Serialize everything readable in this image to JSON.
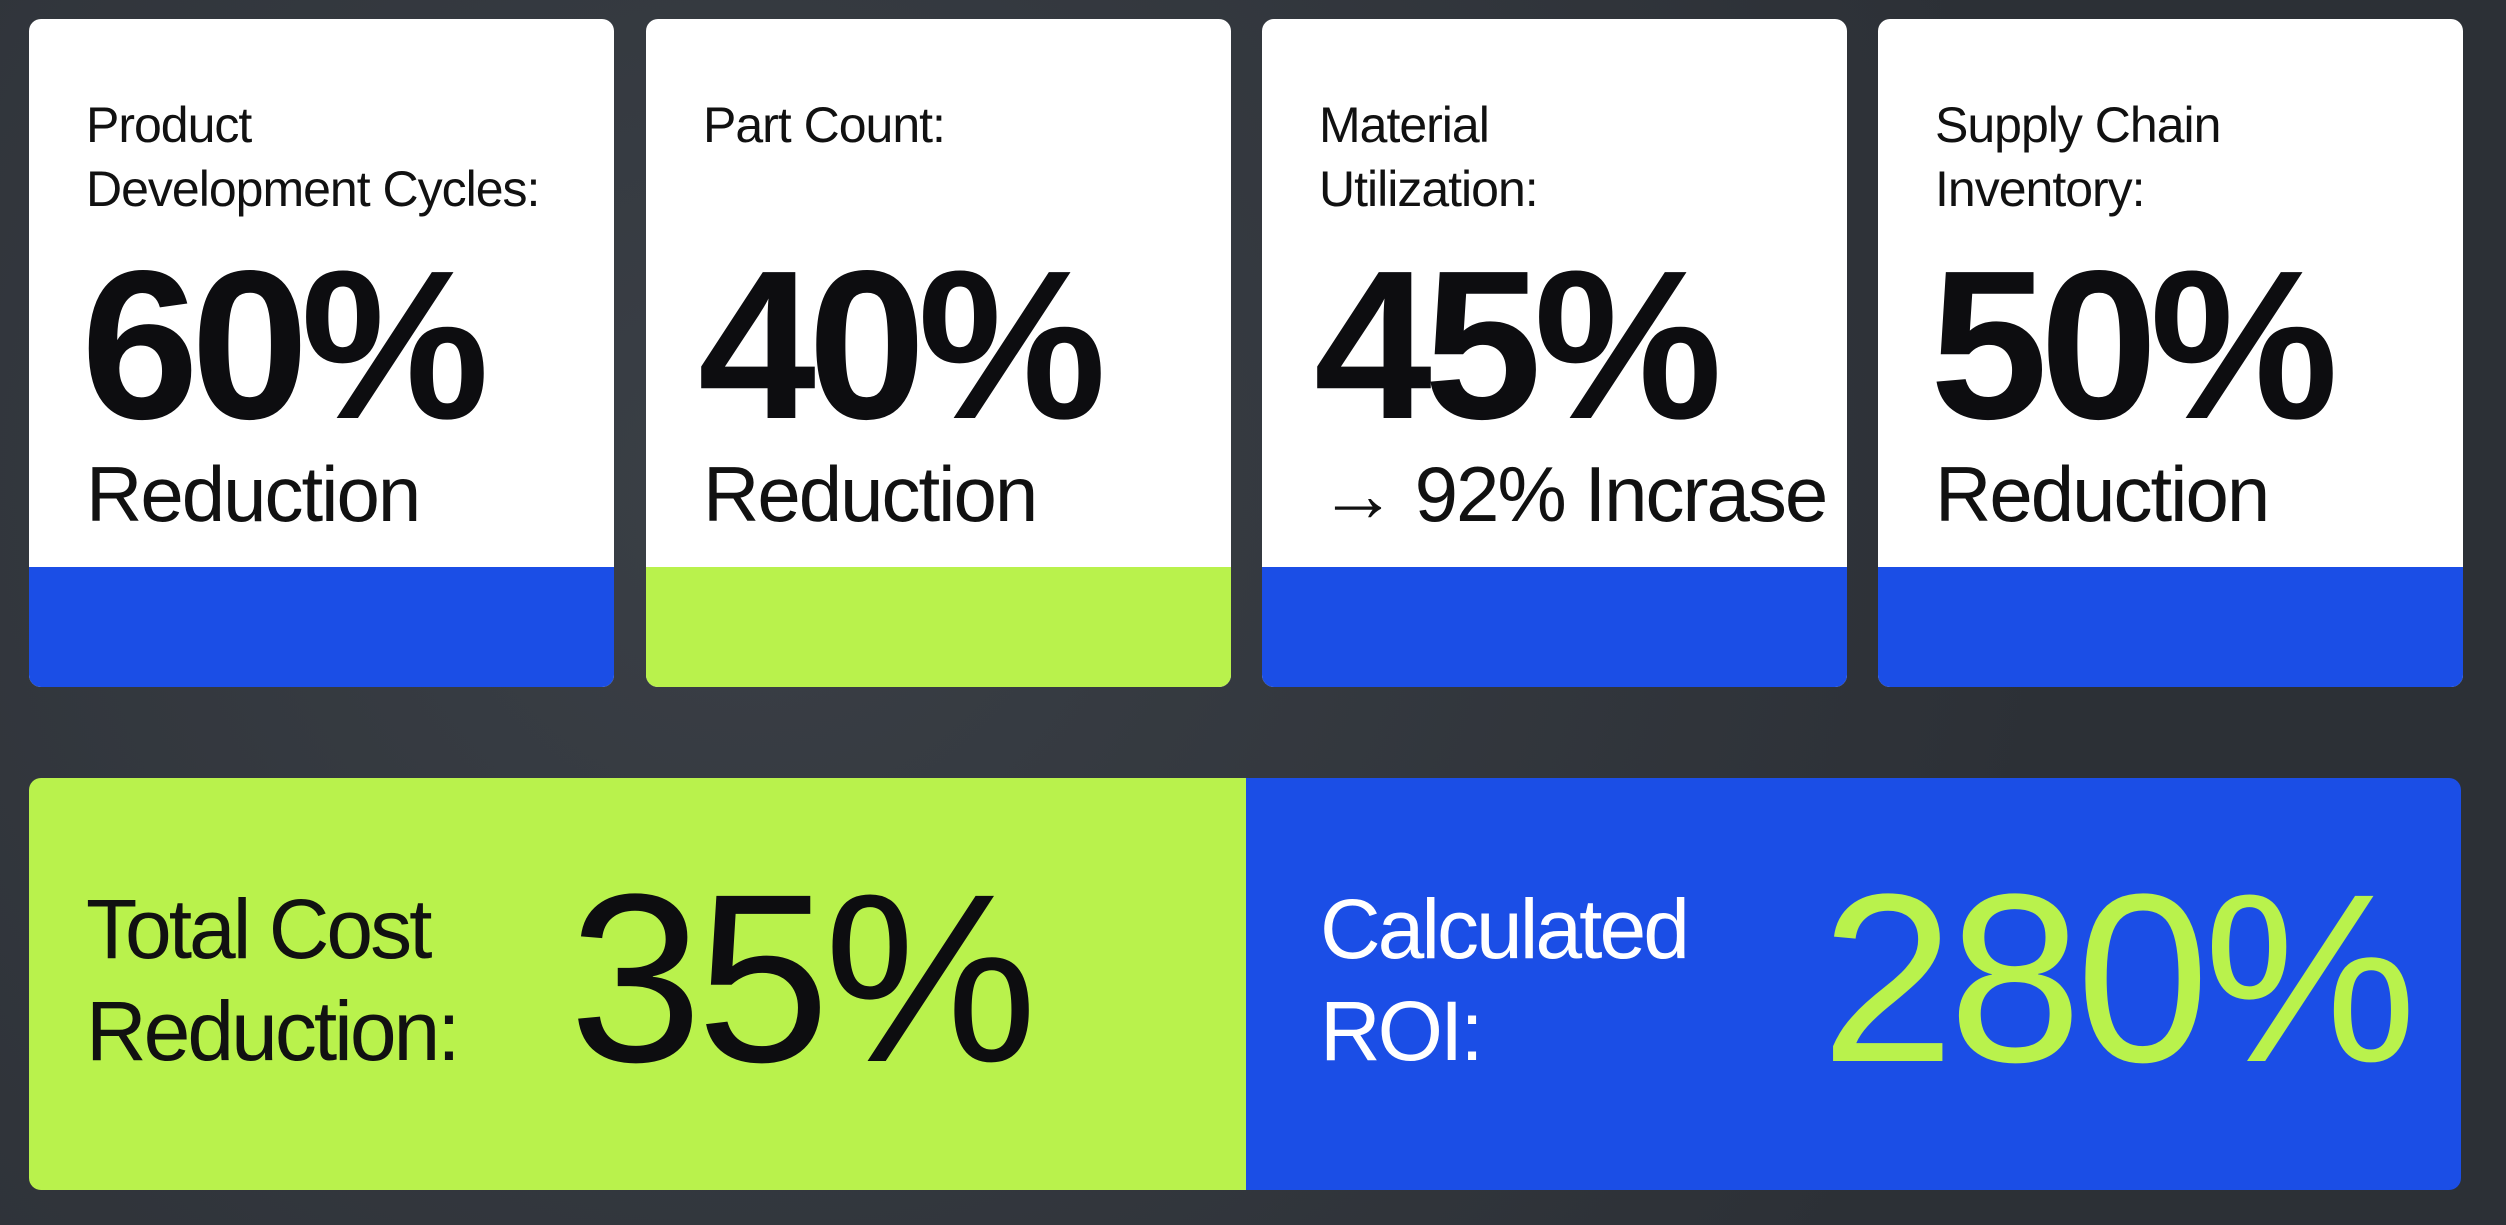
{
  "cards": [
    {
      "label_lines": [
        "Product",
        "Development Cycles:"
      ],
      "value": "60%",
      "caption": "Reduction",
      "accent": "#1b4ee6"
    },
    {
      "label_lines": [
        "Part Count:"
      ],
      "value": "40%",
      "caption": "Reduction",
      "accent": "#b9f24c"
    },
    {
      "label_lines": [
        "Material",
        "Utilization:"
      ],
      "value": "45%",
      "caption": "→ 92% Incrase",
      "accent": "#1b4ee6"
    },
    {
      "label_lines": [
        "Supply Chain",
        "Inventory:"
      ],
      "value": "50%",
      "caption": "Reduction",
      "accent": "#1b4ee6"
    }
  ],
  "summary": {
    "left": {
      "label_lines": [
        "Total Cost",
        "Reduction:"
      ],
      "value": "35%"
    },
    "right": {
      "label_lines": [
        "Calculated",
        "ROI:"
      ],
      "value": "280%"
    }
  }
}
